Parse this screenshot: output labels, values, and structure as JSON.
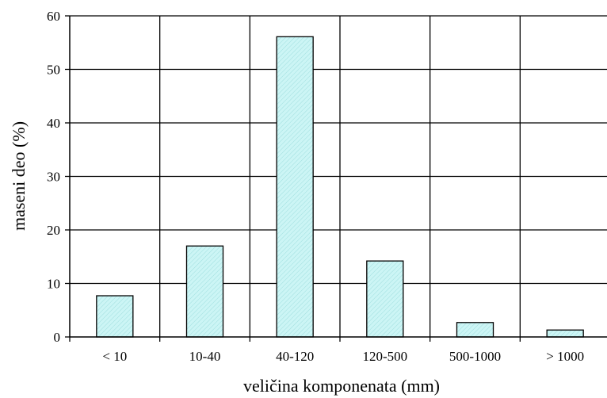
{
  "chart_data": {
    "type": "bar",
    "categories": [
      "< 10",
      "10-40",
      "40-120",
      "120-500",
      "500-1000",
      "> 1000"
    ],
    "values": [
      7.7,
      17.0,
      56.1,
      14.2,
      2.7,
      1.3
    ],
    "xlabel": "veličina komponenata (mm)",
    "ylabel": "maseni deo (%)",
    "ylim": [
      0,
      60
    ],
    "yticks": [
      0,
      10,
      20,
      30,
      40,
      50,
      60
    ],
    "grid": true,
    "bar_color": "#ccf5f5",
    "bar_hatch_color": "#9fdede",
    "legend": "none"
  }
}
